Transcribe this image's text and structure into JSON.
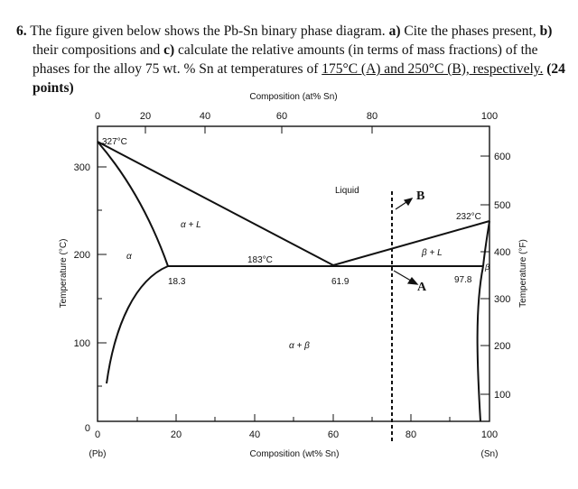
{
  "question": {
    "number": "6.",
    "part1": "The figure given below shows the Pb-Sn binary phase diagram.",
    "a_label": "a)",
    "a_text": "Cite the phases present,",
    "b_label": "b)",
    "b_text": "their compositions and",
    "c_label": "c)",
    "c_text": "calculate the relative amounts (in terms of mass fractions) of the phases for the alloy 75 wt. % Sn at temperatures of",
    "underlined": "175°C (A) and 250°C (B), respectively.",
    "points": "(24 points)"
  },
  "diagram": {
    "top_axis_title": "Composition (at% Sn)",
    "top_ticks": [
      "0",
      "20",
      "40",
      "60",
      "80",
      "100"
    ],
    "bottom_axis_title": "Composition (wt% Sn)",
    "bottom_ticks": [
      "0",
      "20",
      "40",
      "60",
      "80",
      "100"
    ],
    "bottom_left_note": "(Pb)",
    "bottom_right_note": "(Sn)",
    "left_axis_title": "Temperature (°C)",
    "left_ticks": [
      "0",
      "100",
      "200",
      "300"
    ],
    "right_axis_title": "Temperature (°F)",
    "right_ticks": [
      "100",
      "200",
      "300",
      "400",
      "500",
      "600"
    ],
    "labels": {
      "pb_melt": "327°C",
      "sn_melt": "232°C",
      "eutectic_temp": "183°C",
      "liquid": "Liquid",
      "alpha_L": "α + L",
      "beta_L": "β + L",
      "alpha": "α",
      "beta": "β",
      "alpha_beta": "α + β",
      "alpha_limit": "18.3",
      "eutectic_comp": "61.9",
      "beta_limit": "97.8",
      "point_A": "A",
      "point_B": "B"
    },
    "colors": {
      "line": "#111111",
      "background": "#ffffff"
    }
  }
}
